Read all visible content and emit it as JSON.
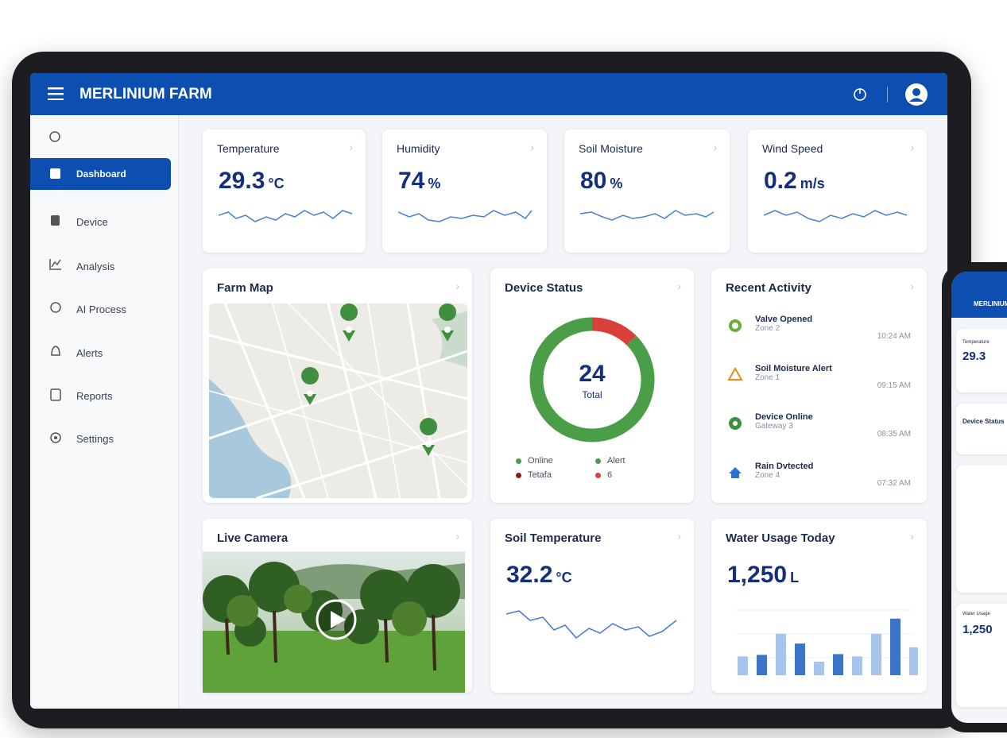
{
  "header": {
    "title": "MERLINIUM FARM"
  },
  "sidebar": {
    "items": [
      "Dashboard",
      "Device",
      "Analysis",
      "AI Process",
      "Alerts",
      "Reports",
      "Settings"
    ]
  },
  "metrics": [
    {
      "title": "Temperature",
      "value": "29.3",
      "unit": "°C"
    },
    {
      "title": "Humidity",
      "value": "74",
      "unit": "%"
    },
    {
      "title": "Soil Moisture",
      "value": "80",
      "unit": "%"
    },
    {
      "title": "Wind Speed",
      "value": "0.2",
      "unit": "m/s"
    }
  ],
  "farm_map": {
    "title": "Farm Map"
  },
  "device_status": {
    "title": "Device Status",
    "total": "24",
    "total_label": "Total",
    "donut_values": [
      21,
      3
    ],
    "donut_colors": [
      "#4a9e48",
      "#d9403a"
    ],
    "legend": [
      {
        "label": "Online",
        "color": "#4a9e48"
      },
      {
        "label": "Alert",
        "color": "#4a9e48"
      },
      {
        "label": "Tetafa",
        "color": "#8b1e22"
      },
      {
        "label": "6",
        "color": "#d9403a"
      }
    ]
  },
  "recent_activity": {
    "title": "Recent Activity",
    "items": [
      {
        "title": "Valve Opened",
        "sub": "Zone 2",
        "time": "10:24 AM"
      },
      {
        "title": "Soil Moisture Alert",
        "sub": "Zone 1",
        "time": "09:15 AM"
      },
      {
        "title": "Device Online",
        "sub": "Gateway 3",
        "time": "08:35 AM"
      },
      {
        "title": "Rain Dvtected",
        "sub": "Zone 4",
        "time": "07:32 AM"
      }
    ]
  },
  "live_camera": {
    "title": "Live Camera"
  },
  "soil_temperature": {
    "title": "Soil Temperature",
    "value": "32.2",
    "unit": "°C"
  },
  "water_usage": {
    "title": "Water Usage Today",
    "value": "1,250",
    "unit": "L",
    "bars": [
      {
        "value": 25,
        "color": "#a9c4ec"
      },
      {
        "value": 27,
        "color": "#3d73c9"
      },
      {
        "value": 55,
        "color": "#a9c4ec"
      },
      {
        "value": 42,
        "color": "#3d73c9"
      },
      {
        "value": 18,
        "color": "#a9c4ec"
      },
      {
        "value": 28,
        "color": "#3d73c9"
      },
      {
        "value": 25,
        "color": "#a9c4ec"
      },
      {
        "value": 55,
        "color": "#a9c4ec"
      },
      {
        "value": 75,
        "color": "#3d73c9"
      },
      {
        "value": 37,
        "color": "#a9c4ec"
      }
    ]
  },
  "phone": {
    "title": "MERLINIUM FARM",
    "temp_label": "Temperature",
    "temp": "29.3",
    "device_label": "Device Status",
    "water_label": "Water Usage",
    "water": "1,250"
  }
}
